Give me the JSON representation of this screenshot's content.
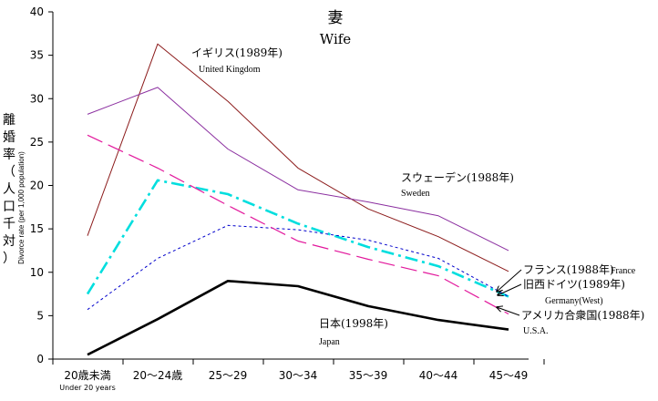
{
  "chart_data": {
    "type": "line",
    "title": "妻",
    "subtitle": "Wife",
    "ylabel_jp_chars": [
      "離",
      "婚",
      "率",
      "（",
      "人",
      "口",
      "千",
      "対",
      "）"
    ],
    "ylabel_en": "Divorce rate (per 1,000 population)",
    "ylim": [
      0,
      40
    ],
    "yticks": [
      0,
      5,
      10,
      15,
      20,
      25,
      30,
      35,
      40
    ],
    "categories": [
      "20歳未満",
      "20～24歳",
      "25～29",
      "30～34",
      "35～39",
      "40～44",
      "45～49"
    ],
    "categories_sub": [
      "Under 20 years",
      "",
      "",
      "",
      "",
      "",
      ""
    ],
    "grid": false,
    "series": [
      {
        "name": "イギリス(1989年)",
        "name_en": "United Kingdom",
        "color": "#8b1a1a",
        "style": "solid",
        "values": [
          14.2,
          36.3,
          29.7,
          22.0,
          17.3,
          14.1,
          10.1
        ]
      },
      {
        "name": "スウェーデン(1988年)",
        "name_en": "Sweden",
        "color": "#8b2fa0",
        "style": "solid",
        "values": [
          28.2,
          31.3,
          24.2,
          19.5,
          18.1,
          16.5,
          12.5
        ]
      },
      {
        "name": "フランス(1988年)",
        "name_en": "France",
        "color": "#00dede",
        "style": "dashdot",
        "values": [
          7.5,
          20.6,
          19.0,
          15.6,
          12.9,
          10.7,
          7.2
        ]
      },
      {
        "name": "旧西ドイツ(1989年)",
        "name_en": "Germany(West)",
        "color": "#0000cc",
        "style": "dotted",
        "values": [
          5.7,
          11.6,
          15.4,
          14.9,
          13.7,
          11.6,
          7.2
        ]
      },
      {
        "name": "アメリカ合衆国(1988年)",
        "name_en": "U.S.A.",
        "color": "#e2189c",
        "style": "longdash",
        "values": [
          25.8,
          22.0,
          17.7,
          13.6,
          11.5,
          9.6,
          5.2
        ]
      },
      {
        "name": "日本(1998年)",
        "name_en": "Japan",
        "color": "#000000",
        "style": "bold",
        "values": [
          0.5,
          4.6,
          9.0,
          8.4,
          6.1,
          4.5,
          3.4
        ]
      }
    ]
  }
}
